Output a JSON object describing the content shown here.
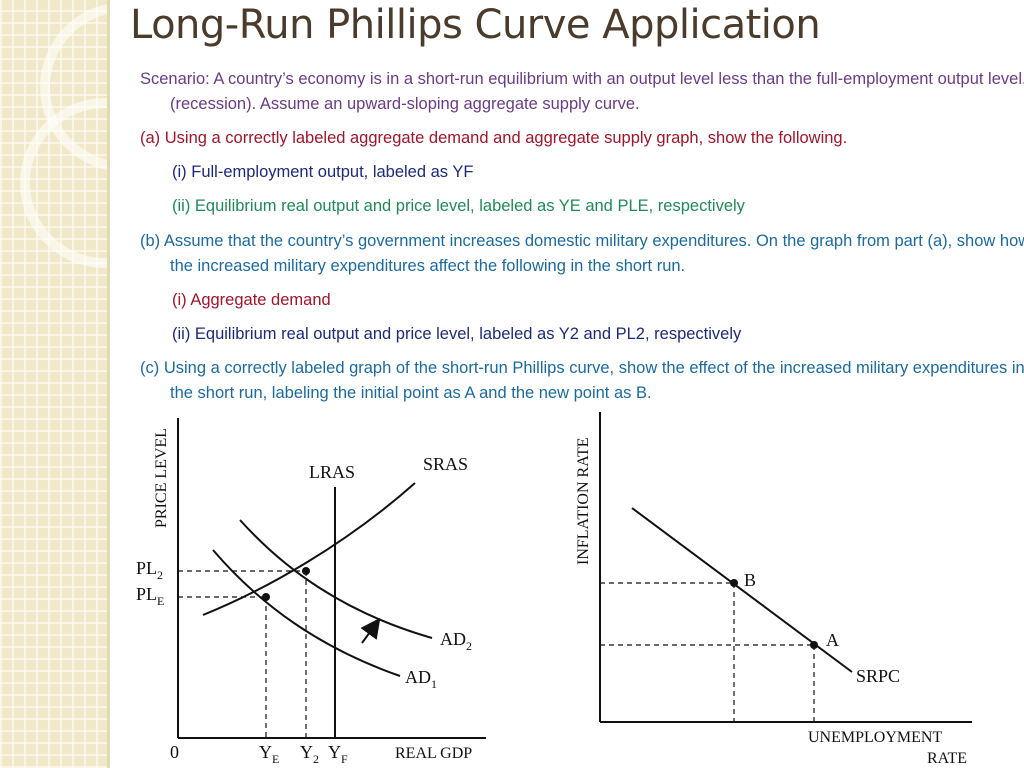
{
  "title": "Long-Run Phillips Curve Application",
  "scenario": "Scenario: A country’s economy is in a short-run equilibrium with an output level less than the full-employment output level.(recession).  Assume an upward-sloping aggregate supply curve.",
  "part_a": "(a) Using a correctly labeled aggregate demand and aggregate supply graph, show the following.",
  "part_a_i": "(i) Full-employment output, labeled as YF",
  "part_a_ii": "(ii) Equilibrium real output and price level, labeled as YE and PLE, respectively",
  "part_b": "(b) Assume that the country’s government increases domestic military expenditures. On the graph from part (a), show how the increased military expenditures affect the following in the short run.",
  "part_b_i": "(i) Aggregate demand",
  "part_b_ii": "(ii) Equilibrium real output and price level, labeled as Y2 and PL2, respectively",
  "part_c": "(c) Using a correctly labeled graph of the short-run Phillips curve, show the effect of the increased military expenditures in the short run, labeling the initial point as A and the new point as B.",
  "colors": {
    "title": "#4a3b2c",
    "scenario": "#6a3b86",
    "part_a": "#a1142a",
    "part_a_i": "#1c2a7a",
    "part_a_ii": "#1f8a57",
    "part_b": "#1a6aa0",
    "part_b_i": "#a1142a",
    "part_b_ii": "#1c2a7a",
    "part_c": "#1a6aa0"
  },
  "ad_as_graph": {
    "y_axis_label": "PRICE LEVEL",
    "x_axis_label": "REAL GDP",
    "origin_label": "0",
    "lras_label": "LRAS",
    "sras_label": "SRAS",
    "ad1_label": "AD",
    "ad1_sub": "1",
    "ad2_label": "AD",
    "ad2_sub": "2",
    "pl2_label": "PL",
    "pl2_sub": "2",
    "ple_label": "PL",
    "ple_sub": "E",
    "ye_label": "Y",
    "ye_sub": "E",
    "y2_label": "Y",
    "y2_sub": "2",
    "yf_label": "Y",
    "yf_sub": "F"
  },
  "phillips_graph": {
    "y_axis_label": "INFLATION RATE",
    "x_axis_label_line1": "UNEMPLOYMENT",
    "x_axis_label_line2": "RATE",
    "srpc_label": "SRPC",
    "point_a_label": "A",
    "point_b_label": "B"
  }
}
